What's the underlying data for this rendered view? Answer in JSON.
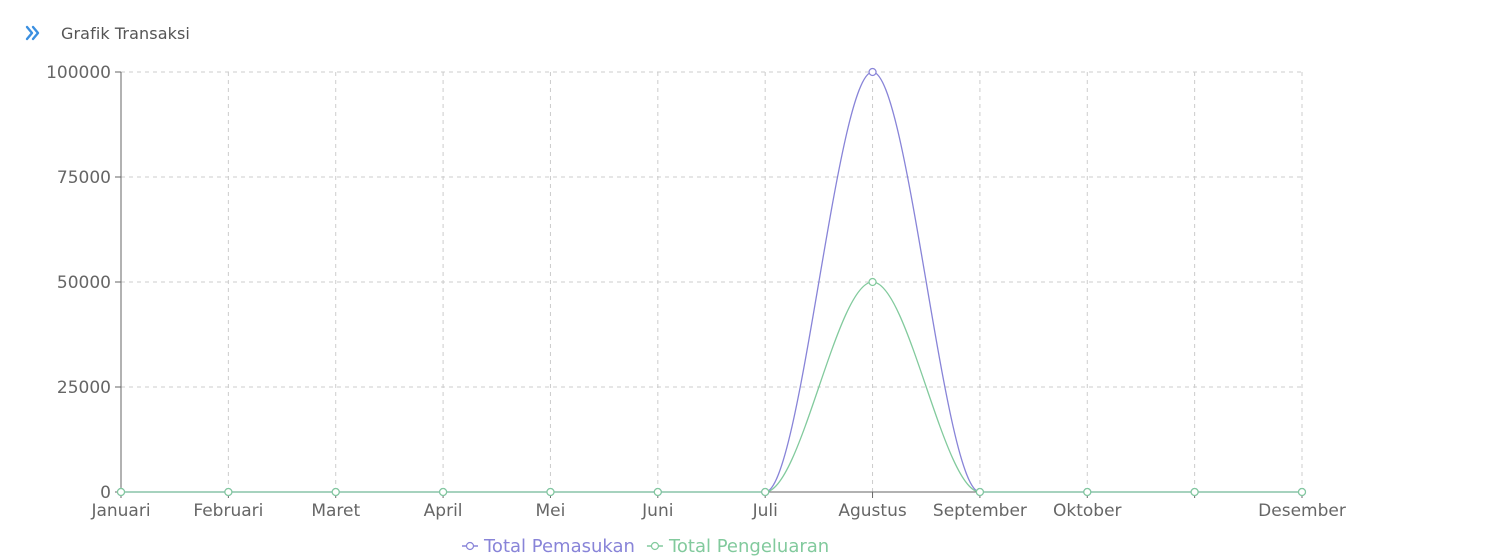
{
  "header": {
    "title": "Grafik Transaksi",
    "icon": "double-chevron-right-icon",
    "icon_color": "#3b8fe0"
  },
  "chart_data": {
    "type": "line",
    "title": "Grafik Transaksi",
    "xlabel": "",
    "ylabel": "",
    "categories": [
      "Januari",
      "Februari",
      "Maret",
      "April",
      "Mei",
      "Juni",
      "Juli",
      "Agustus",
      "September",
      "Oktober",
      "",
      "Desember"
    ],
    "yticks": [
      0,
      25000,
      50000,
      75000,
      100000
    ],
    "ylim": [
      0,
      100000
    ],
    "grid": true,
    "legend_position": "bottom",
    "series": [
      {
        "name": "Total Pemasukan",
        "color": "#8884d8",
        "values": [
          0,
          0,
          0,
          0,
          0,
          0,
          0,
          100000,
          0,
          0,
          0,
          0
        ]
      },
      {
        "name": "Total Pengeluaran",
        "color": "#82ca9d",
        "values": [
          0,
          0,
          0,
          0,
          0,
          0,
          0,
          50000,
          0,
          0,
          0,
          0
        ]
      }
    ]
  }
}
